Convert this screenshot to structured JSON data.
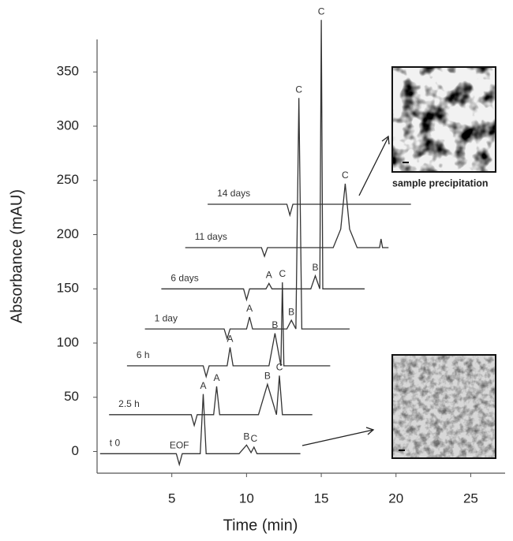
{
  "chart_data": {
    "type": "line",
    "xlabel": "Time (min)",
    "ylabel": "Absorbance (mAU)",
    "xlim": [
      0,
      27.3
    ],
    "xticks": [
      5,
      10,
      15,
      20,
      25
    ],
    "ylim": [
      -20,
      380
    ],
    "yticks": [
      0,
      50,
      100,
      150,
      200,
      250,
      300,
      350
    ],
    "color": "#333333",
    "series": [
      {
        "name": "t 0",
        "x": [
          0.2,
          5.3,
          5.5,
          5.7,
          6.9,
          7.1,
          7.3,
          9.5,
          10.0,
          10.3,
          10.5,
          10.7,
          13.6
        ],
        "values": [
          -2,
          -2,
          -12,
          -2,
          -2,
          53,
          -2,
          -2,
          6,
          -1,
          4,
          -2,
          -2
        ],
        "labels": [
          null,
          null,
          "EOF",
          null,
          null,
          "A",
          null,
          null,
          "B",
          null,
          "C",
          null,
          null
        ]
      },
      {
        "name": "2.5 h",
        "x": [
          0.8,
          6.3,
          6.5,
          6.7,
          7.8,
          8.0,
          8.2,
          10.8,
          11.4,
          12.0,
          12.2,
          12.4,
          14.4
        ],
        "values": [
          34,
          34,
          24,
          34,
          34,
          60,
          34,
          34,
          62,
          34,
          70,
          34,
          34
        ],
        "labels": [
          null,
          null,
          null,
          null,
          null,
          "A",
          null,
          null,
          "B",
          null,
          "C",
          null,
          null
        ]
      },
      {
        "name": "6 h",
        "x": [
          2.0,
          7.1,
          7.3,
          7.5,
          8.7,
          8.9,
          9.1,
          11.5,
          11.9,
          12.3,
          12.4,
          12.5,
          15.6
        ],
        "values": [
          79,
          79,
          69,
          79,
          79,
          96,
          79,
          79,
          109,
          79,
          156,
          79,
          79
        ],
        "labels": [
          null,
          null,
          null,
          null,
          null,
          "A",
          null,
          null,
          "B",
          null,
          "C",
          null,
          null
        ]
      },
      {
        "name": "1 day",
        "x": [
          3.2,
          8.5,
          8.7,
          8.9,
          10.0,
          10.2,
          10.4,
          12.7,
          13.0,
          13.3,
          13.5,
          13.7,
          16.9
        ],
        "values": [
          113,
          113,
          104,
          113,
          113,
          124,
          113,
          113,
          121,
          113,
          326,
          113,
          113
        ],
        "labels": [
          null,
          null,
          null,
          null,
          null,
          "A",
          null,
          null,
          "B",
          null,
          "C",
          null,
          null
        ]
      },
      {
        "name": "6 days",
        "x": [
          4.3,
          9.8,
          10.0,
          10.2,
          11.3,
          11.5,
          11.7,
          14.3,
          14.6,
          14.9,
          15.0,
          15.1,
          17.9
        ],
        "values": [
          150,
          150,
          140,
          150,
          150,
          155,
          150,
          150,
          162,
          150,
          398,
          150,
          150
        ],
        "labels": [
          null,
          null,
          null,
          null,
          null,
          "A",
          null,
          null,
          "B",
          null,
          "C",
          null,
          null
        ]
      },
      {
        "name": "11 days",
        "x": [
          5.9,
          11.0,
          11.2,
          11.4,
          15.8,
          16.3,
          16.6,
          16.9,
          17.4,
          18.9,
          19.0,
          19.1,
          19.5
        ],
        "values": [
          188,
          188,
          180,
          188,
          188,
          205,
          247,
          205,
          188,
          188,
          196,
          188,
          188
        ],
        "labels": [
          null,
          null,
          null,
          null,
          null,
          null,
          "C",
          null,
          null,
          null,
          null,
          null,
          null
        ]
      },
      {
        "name": "14 days",
        "x": [
          7.4,
          12.7,
          12.9,
          13.1,
          21.0
        ],
        "values": [
          228,
          228,
          218,
          228,
          228
        ],
        "labels": [
          null,
          null,
          null,
          null,
          null
        ]
      }
    ],
    "caption": "sample precipitation"
  }
}
